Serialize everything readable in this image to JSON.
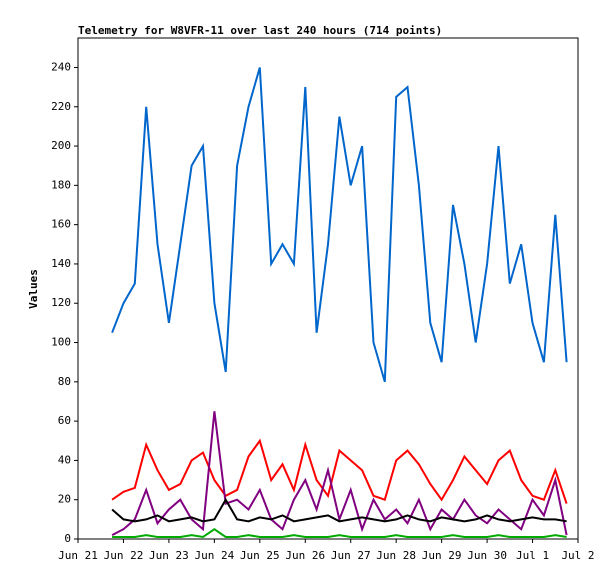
{
  "chart_data": {
    "type": "line",
    "title": "Telemetry for W8VFR-11 over last 240 hours (714 points)",
    "ylabel": "Values",
    "x": [
      0.75,
      1,
      1.25,
      1.5,
      1.75,
      2,
      2.25,
      2.5,
      2.75,
      3,
      3.25,
      3.5,
      3.75,
      4,
      4.25,
      4.5,
      4.75,
      5,
      5.25,
      5.5,
      5.75,
      6,
      6.25,
      6.5,
      6.75,
      7,
      7.25,
      7.5,
      7.75,
      8,
      8.25,
      8.5,
      8.75,
      9,
      9.25,
      9.5,
      9.75,
      10,
      10.25,
      10.5,
      10.75
    ],
    "series": [
      {
        "color": "#0066cc",
        "values": [
          105,
          120,
          130,
          220,
          150,
          110,
          150,
          190,
          200,
          120,
          85,
          190,
          220,
          240,
          140,
          150,
          140,
          230,
          105,
          150,
          215,
          180,
          200,
          100,
          80,
          225,
          230,
          180,
          110,
          90,
          170,
          140,
          100,
          140,
          200,
          130,
          150,
          110,
          90,
          165,
          90
        ]
      },
      {
        "color": "#ff0000",
        "values": [
          20,
          24,
          26,
          48,
          35,
          25,
          28,
          40,
          44,
          30,
          22,
          25,
          42,
          50,
          30,
          38,
          25,
          48,
          30,
          22,
          45,
          40,
          35,
          22,
          20,
          40,
          45,
          38,
          28,
          20,
          30,
          42,
          35,
          28,
          40,
          45,
          30,
          22,
          20,
          35,
          18
        ]
      },
      {
        "color": "#800080",
        "values": [
          2,
          5,
          10,
          25,
          8,
          15,
          20,
          10,
          5,
          65,
          18,
          20,
          15,
          25,
          10,
          5,
          20,
          30,
          15,
          35,
          10,
          25,
          5,
          20,
          10,
          15,
          8,
          20,
          5,
          15,
          10,
          20,
          12,
          8,
          15,
          10,
          5,
          20,
          12,
          30,
          2
        ]
      },
      {
        "color": "#000000",
        "values": [
          15,
          10,
          9,
          10,
          12,
          9,
          10,
          11,
          9,
          10,
          20,
          10,
          9,
          11,
          10,
          12,
          9,
          10,
          11,
          12,
          9,
          10,
          11,
          10,
          9,
          10,
          12,
          10,
          9,
          11,
          10,
          9,
          10,
          12,
          10,
          9,
          10,
          11,
          10,
          10,
          9
        ]
      },
      {
        "color": "#00aa00",
        "values": [
          1,
          1,
          1,
          2,
          1,
          1,
          1,
          2,
          1,
          5,
          1,
          1,
          2,
          1,
          1,
          1,
          2,
          1,
          1,
          1,
          2,
          1,
          1,
          1,
          1,
          2,
          1,
          1,
          1,
          1,
          2,
          1,
          1,
          1,
          2,
          1,
          1,
          1,
          1,
          2,
          1
        ]
      }
    ],
    "xlim": [
      0,
      11
    ],
    "xticks": [
      {
        "value": 0,
        "label": "Jun 21"
      },
      {
        "value": 1,
        "label": "Jun 22"
      },
      {
        "value": 2,
        "label": "Jun 23"
      },
      {
        "value": 3,
        "label": "Jun 24"
      },
      {
        "value": 4,
        "label": "Jun 25"
      },
      {
        "value": 5,
        "label": "Jun 26"
      },
      {
        "value": 6,
        "label": "Jun 27"
      },
      {
        "value": 7,
        "label": "Jun 28"
      },
      {
        "value": 8,
        "label": "Jun 29"
      },
      {
        "value": 9,
        "label": "Jun 30"
      },
      {
        "value": 10,
        "label": "Jul 1"
      },
      {
        "value": 11,
        "label": "Jul 2"
      }
    ],
    "ylim": [
      0,
      255
    ],
    "yticks": [
      0,
      20,
      40,
      60,
      80,
      100,
      120,
      140,
      160,
      180,
      200,
      220,
      240
    ]
  }
}
